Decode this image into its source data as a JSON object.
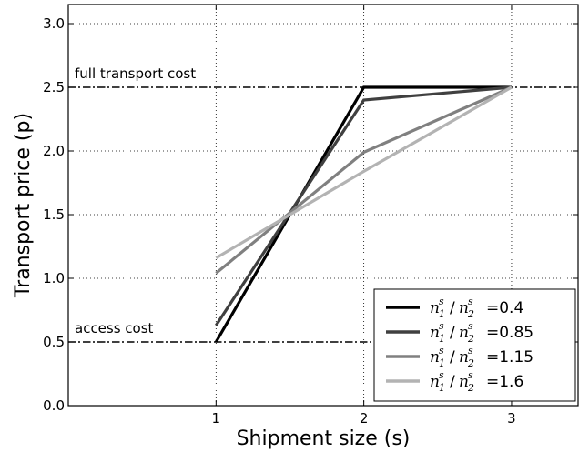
{
  "chart_data": {
    "type": "line",
    "xlabel": "Shipment size (s)",
    "ylabel": "Transport price (p)",
    "xlim": [
      0,
      3.45
    ],
    "ylim": [
      0,
      3.15
    ],
    "xticks": [
      1,
      2,
      3
    ],
    "yticks": [
      0.0,
      0.5,
      1.0,
      1.5,
      2.0,
      2.5,
      3.0
    ],
    "grid": true,
    "legend_position": "lower-right",
    "reference_lines": [
      {
        "label": "full transport cost",
        "y": 2.5,
        "style": "dash-dot",
        "color": "#000000"
      },
      {
        "label": "access cost",
        "y": 0.5,
        "style": "dash-dot",
        "color": "#000000"
      }
    ],
    "series": [
      {
        "name": "n_1^s / n_2^s = 0.4",
        "legend_value": "=0.4",
        "color": "#000000",
        "x": [
          1,
          2,
          3
        ],
        "y": [
          0.5,
          2.5,
          2.5
        ]
      },
      {
        "name": "n_1^s / n_2^s = 0.85",
        "legend_value": "=0.85",
        "color": "#404040",
        "x": [
          1,
          2,
          3
        ],
        "y": [
          0.63,
          2.4,
          2.5
        ]
      },
      {
        "name": "n_1^s / n_2^s = 1.15",
        "legend_value": "=1.15",
        "color": "#808080",
        "x": [
          1,
          2,
          3
        ],
        "y": [
          1.04,
          1.99,
          2.5
        ]
      },
      {
        "name": "n_1^s / n_2^s = 1.6",
        "legend_value": "=1.6",
        "color": "#b3b3b3",
        "x": [
          1,
          2,
          3
        ],
        "y": [
          1.16,
          1.84,
          2.5
        ]
      }
    ]
  }
}
